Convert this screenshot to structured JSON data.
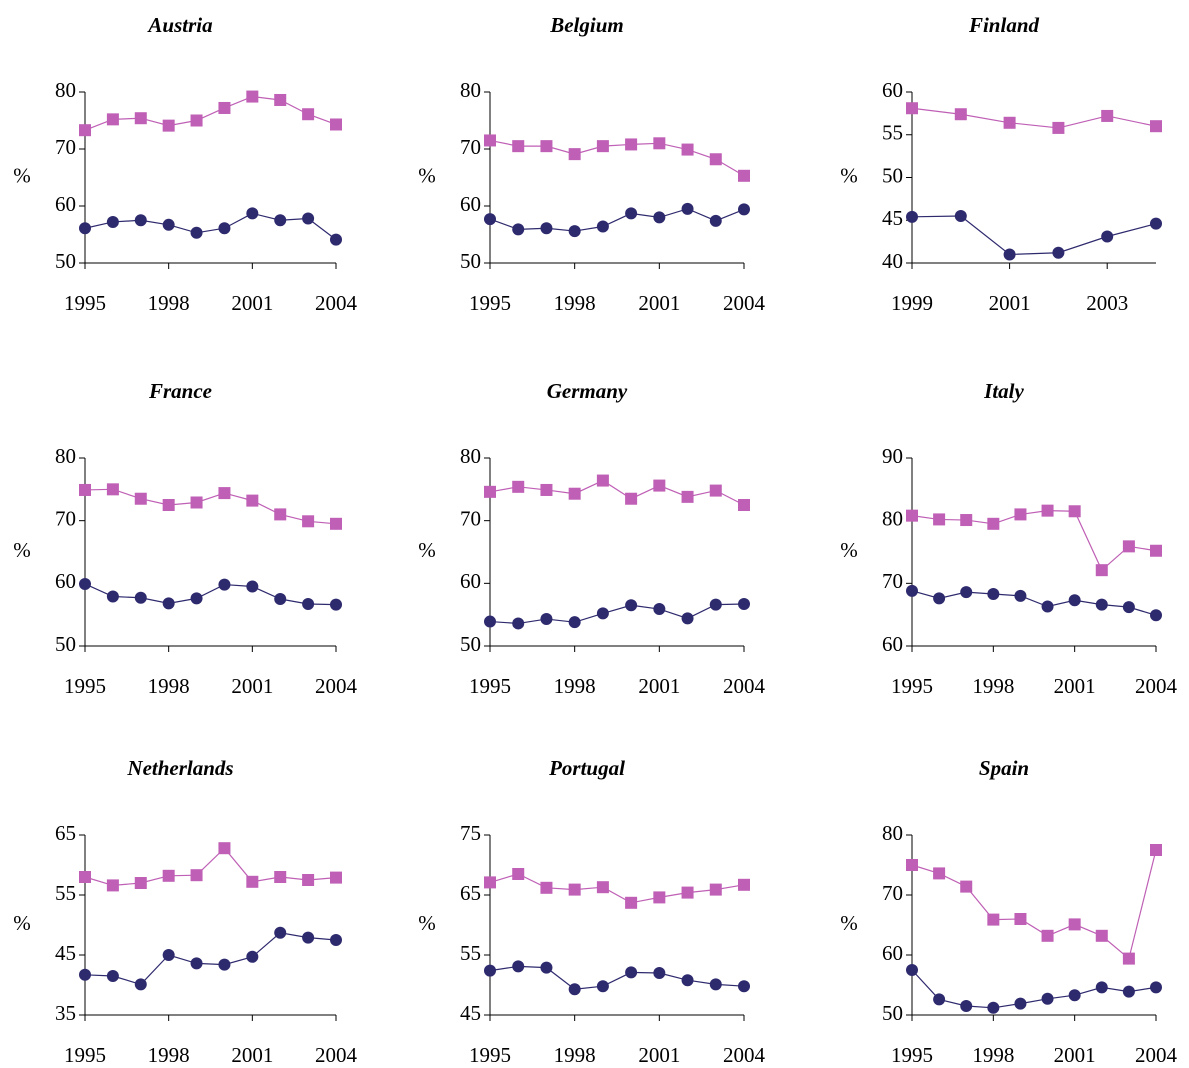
{
  "chart_data": [
    {
      "type": "line",
      "title": "Austria",
      "ylabel": "%",
      "x": [
        1995,
        1996,
        1997,
        1998,
        1999,
        2000,
        2001,
        2002,
        2003,
        2004
      ],
      "xlim": [
        1995,
        2004
      ],
      "xticks": [
        1995,
        1998,
        2001,
        2004
      ],
      "ylim": [
        50,
        80
      ],
      "yticks": [
        50,
        60,
        70,
        80
      ],
      "series": [
        {
          "color": "#bf5fb5",
          "marker": "square",
          "values": [
            73.3,
            75.2,
            75.4,
            74.1,
            75,
            77.2,
            79.2,
            78.6,
            76.1,
            74.3
          ]
        },
        {
          "color": "#2e2a6e",
          "marker": "circle",
          "values": [
            56.1,
            57.2,
            57.5,
            56.7,
            55.3,
            56.1,
            58.7,
            57.5,
            57.8,
            54.1
          ]
        }
      ]
    },
    {
      "type": "line",
      "title": "Belgium",
      "ylabel": "%",
      "x": [
        1995,
        1996,
        1997,
        1998,
        1999,
        2000,
        2001,
        2002,
        2003,
        2004
      ],
      "xlim": [
        1995,
        2004
      ],
      "xticks": [
        1995,
        1998,
        2001,
        2004
      ],
      "ylim": [
        50,
        80
      ],
      "yticks": [
        50,
        60,
        70,
        80
      ],
      "series": [
        {
          "color": "#bf5fb5",
          "marker": "square",
          "values": [
            71.5,
            70.5,
            70.5,
            69.1,
            70.5,
            70.8,
            71,
            69.9,
            68.2,
            65.3
          ]
        },
        {
          "color": "#2e2a6e",
          "marker": "circle",
          "values": [
            57.7,
            55.9,
            56.1,
            55.6,
            56.4,
            58.7,
            58,
            59.5,
            57.4,
            59.4
          ]
        }
      ]
    },
    {
      "type": "line",
      "title": "Finland",
      "ylabel": "%",
      "x": [
        1999,
        2000,
        2001,
        2002,
        2003,
        2004
      ],
      "xlim": [
        1999,
        2004
      ],
      "xticks": [
        1999,
        2001,
        2003
      ],
      "ylim": [
        40,
        60
      ],
      "yticks": [
        40,
        45,
        50,
        55,
        60
      ],
      "series": [
        {
          "color": "#bf5fb5",
          "marker": "square",
          "values": [
            58.1,
            57.4,
            56.4,
            55.8,
            57.2,
            56
          ]
        },
        {
          "color": "#2e2a6e",
          "marker": "circle",
          "values": [
            45.4,
            45.5,
            41,
            41.2,
            43.1,
            44.6
          ]
        }
      ]
    },
    {
      "type": "line",
      "title": "France",
      "ylabel": "%",
      "x": [
        1995,
        1996,
        1997,
        1998,
        1999,
        2000,
        2001,
        2002,
        2003,
        2004
      ],
      "xlim": [
        1995,
        2004
      ],
      "xticks": [
        1995,
        1998,
        2001,
        2004
      ],
      "ylim": [
        50,
        80
      ],
      "yticks": [
        50,
        60,
        70,
        80
      ],
      "series": [
        {
          "color": "#bf5fb5",
          "marker": "square",
          "values": [
            74.9,
            75,
            73.5,
            72.5,
            72.9,
            74.4,
            73.2,
            71,
            69.9,
            69.5
          ]
        },
        {
          "color": "#2e2a6e",
          "marker": "circle",
          "values": [
            59.9,
            57.9,
            57.7,
            56.8,
            57.6,
            59.8,
            59.5,
            57.5,
            56.7,
            56.6
          ]
        }
      ]
    },
    {
      "type": "line",
      "title": "Germany",
      "ylabel": "%",
      "x": [
        1995,
        1996,
        1997,
        1998,
        1999,
        2000,
        2001,
        2002,
        2003,
        2004
      ],
      "xlim": [
        1995,
        2004
      ],
      "xticks": [
        1995,
        1998,
        2001,
        2004
      ],
      "ylim": [
        50,
        80
      ],
      "yticks": [
        50,
        60,
        70,
        80
      ],
      "series": [
        {
          "color": "#bf5fb5",
          "marker": "square",
          "values": [
            74.6,
            75.4,
            74.9,
            74.3,
            76.4,
            73.5,
            75.6,
            73.8,
            74.8,
            72.5
          ]
        },
        {
          "color": "#2e2a6e",
          "marker": "circle",
          "values": [
            53.9,
            53.6,
            54.3,
            53.8,
            55.2,
            56.5,
            55.9,
            54.4,
            56.6,
            56.7
          ]
        }
      ]
    },
    {
      "type": "line",
      "title": "Italy",
      "ylabel": "%",
      "x": [
        1995,
        1996,
        1997,
        1998,
        1999,
        2000,
        2001,
        2002,
        2003,
        2004
      ],
      "xlim": [
        1995,
        2004
      ],
      "xticks": [
        1995,
        1998,
        2001,
        2004
      ],
      "ylim": [
        60,
        90
      ],
      "yticks": [
        60,
        70,
        80,
        90
      ],
      "series": [
        {
          "color": "#bf5fb5",
          "marker": "square",
          "values": [
            80.8,
            80.2,
            80.1,
            79.5,
            81,
            81.6,
            81.5,
            72.1,
            75.9,
            75.2
          ]
        },
        {
          "color": "#2e2a6e",
          "marker": "circle",
          "values": [
            68.8,
            67.6,
            68.6,
            68.3,
            68,
            66.3,
            67.3,
            66.6,
            66.2,
            64.9
          ]
        }
      ]
    },
    {
      "type": "line",
      "title": "Netherlands",
      "ylabel": "%",
      "x": [
        1995,
        1996,
        1997,
        1998,
        1999,
        2000,
        2001,
        2002,
        2003,
        2004
      ],
      "xlim": [
        1995,
        2004
      ],
      "xticks": [
        1995,
        1998,
        2001,
        2004
      ],
      "ylim": [
        35,
        65
      ],
      "yticks": [
        35,
        45,
        55,
        65
      ],
      "series": [
        {
          "color": "#bf5fb5",
          "marker": "square",
          "values": [
            58,
            56.6,
            57,
            58.2,
            58.3,
            62.8,
            57.2,
            58,
            57.5,
            57.9
          ]
        },
        {
          "color": "#2e2a6e",
          "marker": "circle",
          "values": [
            41.7,
            41.5,
            40.1,
            45,
            43.6,
            43.4,
            44.7,
            48.7,
            47.9,
            47.5
          ]
        }
      ]
    },
    {
      "type": "line",
      "title": "Portugal",
      "ylabel": "%",
      "x": [
        1995,
        1996,
        1997,
        1998,
        1999,
        2000,
        2001,
        2002,
        2003,
        2004
      ],
      "xlim": [
        1995,
        2004
      ],
      "xticks": [
        1995,
        1998,
        2001,
        2004
      ],
      "ylim": [
        45,
        75
      ],
      "yticks": [
        45,
        55,
        65,
        75
      ],
      "series": [
        {
          "color": "#bf5fb5",
          "marker": "square",
          "values": [
            67.1,
            68.5,
            66.2,
            65.9,
            66.3,
            63.7,
            64.6,
            65.4,
            65.9,
            66.7
          ]
        },
        {
          "color": "#2e2a6e",
          "marker": "circle",
          "values": [
            52.4,
            53.1,
            52.9,
            49.3,
            49.8,
            52.1,
            52,
            50.8,
            50.1,
            49.8
          ]
        }
      ]
    },
    {
      "type": "line",
      "title": "Spain",
      "ylabel": "%",
      "x": [
        1995,
        1996,
        1997,
        1998,
        1999,
        2000,
        2001,
        2002,
        2003,
        2004
      ],
      "xlim": [
        1995,
        2004
      ],
      "xticks": [
        1995,
        1998,
        2001,
        2004
      ],
      "ylim": [
        50,
        80
      ],
      "yticks": [
        50,
        60,
        70,
        80
      ],
      "series": [
        {
          "color": "#bf5fb5",
          "marker": "square",
          "values": [
            75,
            73.6,
            71.4,
            65.9,
            66,
            63.2,
            65.1,
            63.2,
            59.4,
            77.5
          ]
        },
        {
          "color": "#2e2a6e",
          "marker": "circle",
          "values": [
            57.5,
            52.6,
            51.5,
            51.2,
            51.9,
            52.7,
            53.3,
            54.6,
            53.9,
            54.6
          ]
        }
      ]
    }
  ]
}
